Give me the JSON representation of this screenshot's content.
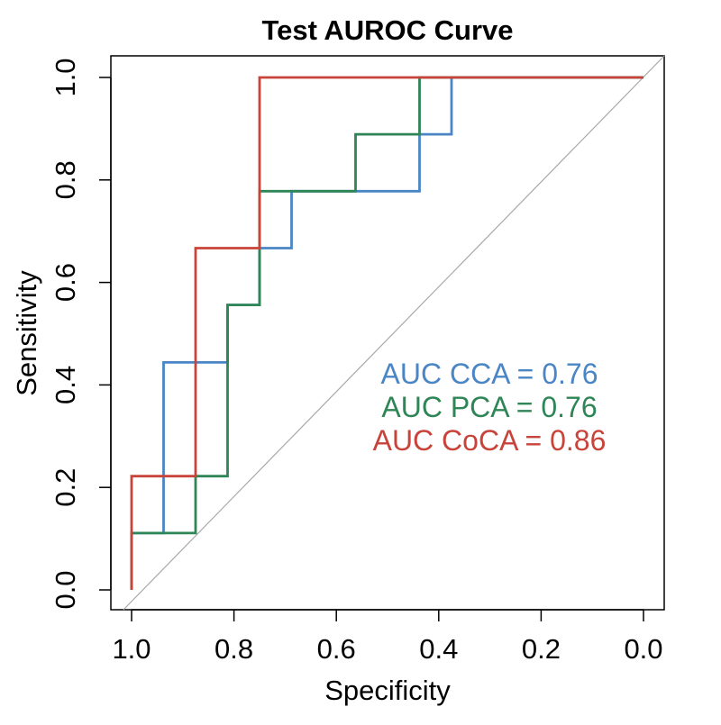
{
  "chart_data": {
    "type": "line",
    "title": "Test AUROC Curve",
    "xlabel": "Specificity",
    "ylabel": "Sensitivity",
    "xlim": [
      1.0,
      0.0
    ],
    "ylim": [
      0.0,
      1.0
    ],
    "x_ticks": [
      "1.0",
      "0.8",
      "0.6",
      "0.4",
      "0.2",
      "0.0"
    ],
    "x_tick_values": [
      1.0,
      0.8,
      0.6,
      0.4,
      0.2,
      0.0
    ],
    "y_ticks": [
      "0.0",
      "0.2",
      "0.4",
      "0.6",
      "0.8",
      "1.0"
    ],
    "y_tick_values": [
      0.0,
      0.2,
      0.4,
      0.6,
      0.8,
      1.0
    ],
    "grid": false,
    "reference_line": {
      "name": "chance diagonal",
      "color": "#a8a8a8"
    },
    "series": [
      {
        "name": "CCA",
        "color": "#4a86c5",
        "auc_label": "AUC CCA = 0.76",
        "points": [
          [
            1.0,
            0.0
          ],
          [
            1.0,
            0.111
          ],
          [
            0.9375,
            0.111
          ],
          [
            0.9375,
            0.444
          ],
          [
            0.8125,
            0.444
          ],
          [
            0.8125,
            0.556
          ],
          [
            0.75,
            0.556
          ],
          [
            0.75,
            0.667
          ],
          [
            0.6875,
            0.667
          ],
          [
            0.6875,
            0.778
          ],
          [
            0.4375,
            0.778
          ],
          [
            0.4375,
            0.889
          ],
          [
            0.375,
            0.889
          ],
          [
            0.375,
            1.0
          ],
          [
            0.0,
            1.0
          ]
        ]
      },
      {
        "name": "PCA",
        "color": "#2e8555",
        "auc_label": "AUC PCA = 0.76",
        "points": [
          [
            1.0,
            0.0
          ],
          [
            1.0,
            0.111
          ],
          [
            0.875,
            0.111
          ],
          [
            0.875,
            0.222
          ],
          [
            0.8125,
            0.222
          ],
          [
            0.8125,
            0.556
          ],
          [
            0.75,
            0.556
          ],
          [
            0.75,
            0.778
          ],
          [
            0.5625,
            0.778
          ],
          [
            0.5625,
            0.889
          ],
          [
            0.4375,
            0.889
          ],
          [
            0.4375,
            1.0
          ],
          [
            0.0,
            1.0
          ]
        ]
      },
      {
        "name": "CoCA",
        "color": "#c8433a",
        "auc_label": "AUC CoCA = 0.86",
        "points": [
          [
            1.0,
            0.0
          ],
          [
            1.0,
            0.222
          ],
          [
            0.875,
            0.222
          ],
          [
            0.875,
            0.667
          ],
          [
            0.75,
            0.667
          ],
          [
            0.75,
            1.0
          ],
          [
            0.0,
            1.0
          ]
        ]
      }
    ]
  }
}
